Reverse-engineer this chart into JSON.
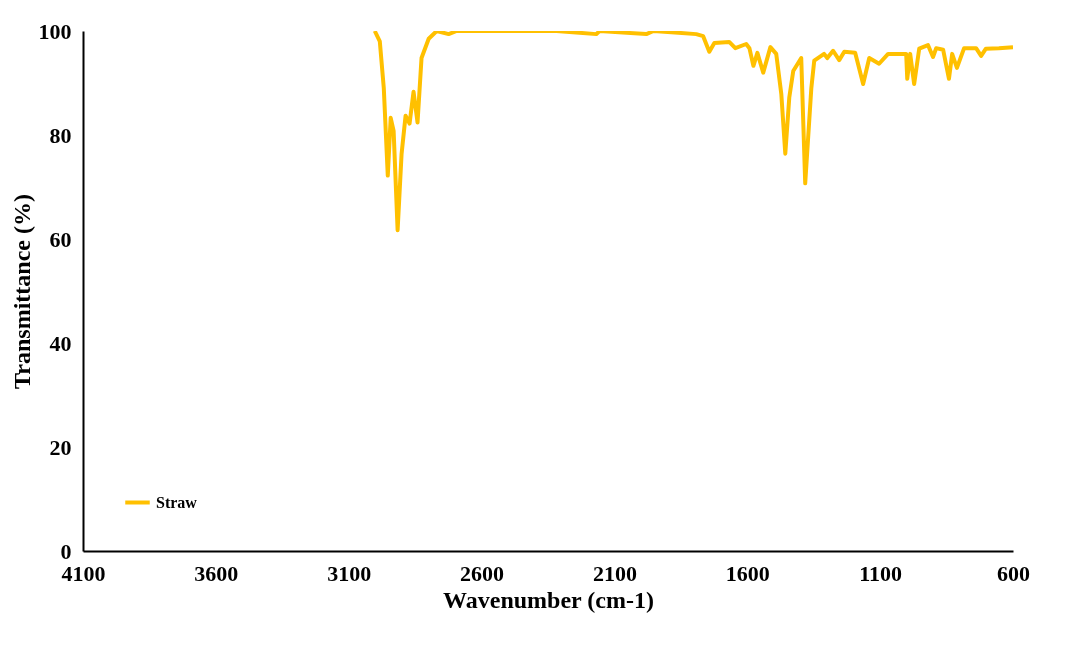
{
  "chart_data": {
    "type": "line",
    "xlabel": "Wavenumber (cm-1)",
    "ylabel": "Transmittance (%)",
    "xlim": [
      4100,
      600
    ],
    "xticks": [
      4100,
      3600,
      3100,
      2600,
      2100,
      1600,
      1100,
      600
    ],
    "ylim": [
      0,
      100
    ],
    "yticks": [
      0,
      20,
      40,
      60,
      80,
      100
    ],
    "grid": false,
    "legend": "bottom left",
    "marker": "none",
    "line_style": "solid",
    "series": [
      {
        "name": "Straw",
        "color": "#ffc000",
        "x": [
          3002,
          2983,
          2968,
          2953,
          2942,
          2931,
          2916,
          2901,
          2886,
          2871,
          2856,
          2841,
          2826,
          2799,
          2769,
          2724,
          2694,
          2374,
          2318,
          2269,
          2168,
          2156,
          1980,
          1953,
          1792,
          1766,
          1743,
          1724,
          1668,
          1645,
          1604,
          1592,
          1577,
          1562,
          1540,
          1513,
          1491,
          1472,
          1457,
          1442,
          1427,
          1397,
          1382,
          1359,
          1348,
          1311,
          1299,
          1277,
          1254,
          1235,
          1194,
          1164,
          1141,
          1104,
          1070,
          1002,
          998,
          987,
          972,
          953,
          920,
          901,
          889,
          863,
          841,
          829,
          811,
          784,
          739,
          720,
          702,
          653,
          600
        ],
        "values": [
          100,
          98,
          89,
          72.2,
          83.3,
          80.8,
          61.7,
          76.4,
          83.7,
          82.2,
          88.3,
          82.4,
          94.8,
          98.5,
          100,
          99.4,
          100,
          100,
          100,
          99.8,
          99.4,
          100,
          99.4,
          100,
          99.4,
          99,
          96,
          97.7,
          97.9,
          96.7,
          97.5,
          96.7,
          93.3,
          95.8,
          92,
          96.9,
          95.6,
          87.9,
          76.4,
          87.2,
          92.3,
          94.8,
          70.7,
          89,
          94.3,
          95.6,
          94.8,
          96.2,
          94.4,
          96,
          95.8,
          89.8,
          94.8,
          93.7,
          95.6,
          95.6,
          90.8,
          95.6,
          89.8,
          96.6,
          97.3,
          95,
          96.7,
          96.4,
          90.8,
          95.6,
          92.9,
          96.7,
          96.7,
          95.2,
          96.6,
          96.7,
          96.9
        ]
      }
    ]
  }
}
